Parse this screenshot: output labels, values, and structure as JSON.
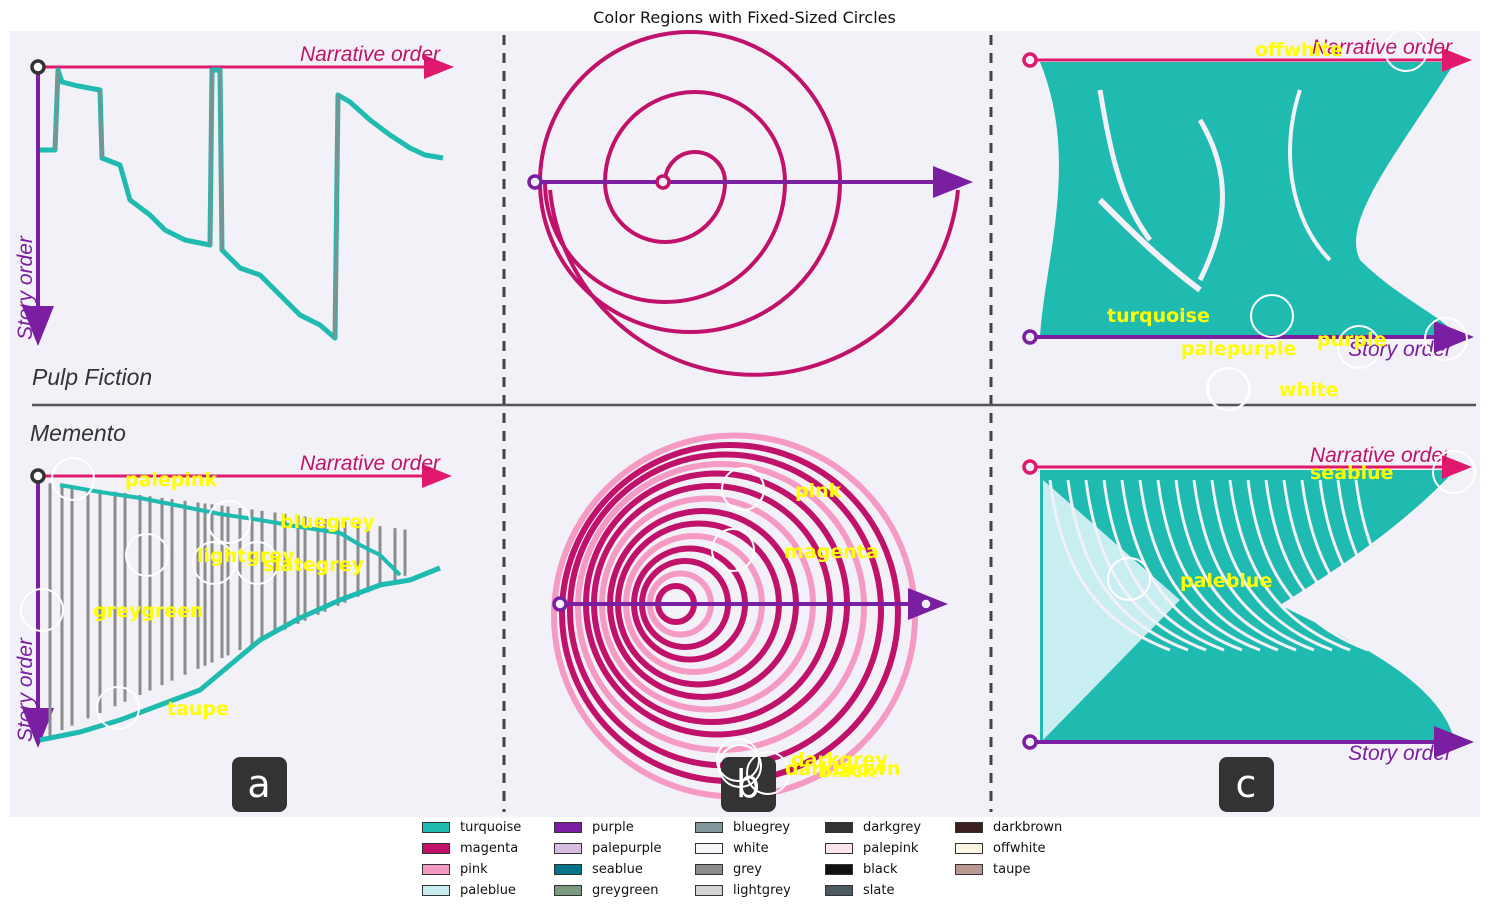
{
  "chart_data": {
    "type": "other",
    "title": "Color Regions with Fixed-Sized Circles",
    "panels": {
      "a_top": {
        "title": "Pulp Fiction",
        "x_label": "Narrative order",
        "y_label": "Story order"
      },
      "a_bottom": {
        "title": "Memento",
        "x_label": "Narrative order",
        "y_label": "Story order"
      },
      "c_top": {
        "x_label": "Narrative order",
        "y_label": "Story order"
      },
      "c_bottom": {
        "x_label": "Narrative order",
        "y_label": "Story order"
      }
    },
    "panel_letters": [
      "a",
      "b",
      "c"
    ],
    "annotations": [
      {
        "label": "offwhite"
      },
      {
        "label": "turquoise"
      },
      {
        "label": "purple"
      },
      {
        "label": "palepurple"
      },
      {
        "label": "white"
      },
      {
        "label": "palepink"
      },
      {
        "label": "bluegrey"
      },
      {
        "label": "lightgrey"
      },
      {
        "label": "slategrey"
      },
      {
        "label": "greygreen"
      },
      {
        "label": "taupe"
      },
      {
        "label": "pink"
      },
      {
        "label": "magenta"
      },
      {
        "label": "darkgrey"
      },
      {
        "label": "darkbrown"
      },
      {
        "label": "black"
      },
      {
        "label": "seablue"
      },
      {
        "label": "paleblue"
      }
    ],
    "legend": [
      {
        "label": "turquoise",
        "color": "#1fbab0"
      },
      {
        "label": "magenta",
        "color": "#c0126a"
      },
      {
        "label": "pink",
        "color": "#f59ac3"
      },
      {
        "label": "paleblue",
        "color": "#c8eef1"
      },
      {
        "label": "purple",
        "color": "#7b1fa2"
      },
      {
        "label": "palepurple",
        "color": "#d7bde2"
      },
      {
        "label": "seablue",
        "color": "#00758a"
      },
      {
        "label": "greygreen",
        "color": "#7c9a80"
      },
      {
        "label": "bluegrey",
        "color": "#7f969b"
      },
      {
        "label": "white",
        "color": "#f6f7fb"
      },
      {
        "label": "grey",
        "color": "#8c8c8c"
      },
      {
        "label": "lightgrey",
        "color": "#d3d3d3"
      },
      {
        "label": "darkgrey",
        "color": "#333333"
      },
      {
        "label": "palepink",
        "color": "#fce4ec"
      },
      {
        "label": "black",
        "color": "#111111"
      },
      {
        "label": "slate",
        "color": "#4c5a61"
      },
      {
        "label": "darkbrown",
        "color": "#3b2220"
      },
      {
        "label": "offwhite",
        "color": "#fbf4e4"
      },
      {
        "label": "taupe",
        "color": "#b89890"
      }
    ],
    "colors": {
      "annotation_text": "#ffff00",
      "circle": "#ffffff",
      "background": "#f2f1f7"
    }
  }
}
